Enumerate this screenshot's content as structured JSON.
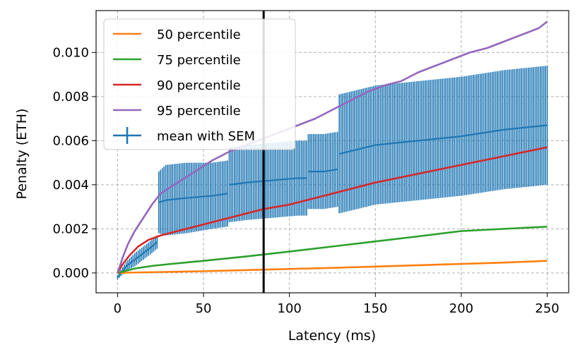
{
  "chart_data": {
    "type": "line",
    "title": "",
    "xlabel": "Latency (ms)",
    "ylabel": "Penalty (ETH)",
    "xlim": [
      -12.5,
      262.5
    ],
    "ylim": [
      -0.0009,
      0.0119
    ],
    "xticks": [
      0,
      50,
      100,
      150,
      200,
      250
    ],
    "xtick_labels": [
      "0",
      "50",
      "100",
      "150",
      "200",
      "250"
    ],
    "yticks": [
      0.0,
      0.002,
      0.004,
      0.006,
      0.008,
      0.01
    ],
    "ytick_labels": [
      "0.000",
      "0.002",
      "0.004",
      "0.006",
      "0.008",
      "0.010"
    ],
    "grid": true,
    "legend_position": "top-left",
    "vline": {
      "x": 85,
      "color": "#000000"
    },
    "series": [
      {
        "name": "50 percentile",
        "color": "#ff7f0e",
        "x": [
          0,
          10,
          25,
          50,
          75,
          100,
          125,
          150,
          175,
          200,
          225,
          250
        ],
        "values": [
          0.0,
          2e-05,
          4e-05,
          8e-05,
          0.00013,
          0.00018,
          0.00023,
          0.00029,
          0.00035,
          0.00041,
          0.00047,
          0.00055
        ]
      },
      {
        "name": "75 percentile",
        "color": "#2ca02c",
        "x": [
          0,
          5,
          10,
          20,
          30,
          50,
          75,
          100,
          125,
          150,
          175,
          200,
          225,
          250
        ],
        "values": [
          0.0,
          0.0001,
          0.0002,
          0.00032,
          0.0004,
          0.00055,
          0.00075,
          0.00097,
          0.0012,
          0.00143,
          0.00166,
          0.0019,
          0.002,
          0.0021
        ]
      },
      {
        "name": "90 percentile",
        "color": "#d62728",
        "x": [
          0,
          3,
          7,
          12,
          18,
          25,
          35,
          50,
          60,
          70,
          85,
          100,
          115,
          130,
          150,
          175,
          200,
          225,
          250
        ],
        "values": [
          0.0,
          0.0004,
          0.0008,
          0.0012,
          0.0015,
          0.0017,
          0.0019,
          0.0022,
          0.0024,
          0.0026,
          0.0029,
          0.0031,
          0.0034,
          0.0037,
          0.0041,
          0.0045,
          0.0049,
          0.0053,
          0.0057
        ]
      },
      {
        "name": "95 percentile",
        "color": "#9467bd",
        "x": [
          0,
          3,
          6,
          10,
          15,
          20,
          25,
          35,
          45,
          55,
          65,
          75,
          85,
          95,
          105,
          115,
          125,
          135,
          145,
          155,
          165,
          175,
          185,
          195,
          205,
          215,
          225,
          235,
          245,
          250
        ],
        "values": [
          0.0,
          0.0007,
          0.0013,
          0.0019,
          0.0025,
          0.0031,
          0.0036,
          0.0041,
          0.0046,
          0.0051,
          0.0055,
          0.0058,
          0.0061,
          0.0064,
          0.0067,
          0.007,
          0.0074,
          0.0078,
          0.0082,
          0.0085,
          0.0087,
          0.0091,
          0.0094,
          0.0097,
          0.01,
          0.0102,
          0.0105,
          0.0108,
          0.0111,
          0.0114
        ]
      }
    ],
    "errorbar": {
      "name": "mean with SEM",
      "color": "#1f77b4",
      "x_range": [
        0,
        250
      ],
      "segments": [
        {
          "x": [
            0,
            5,
            10,
            15,
            20,
            23
          ],
          "mean": [
            -0.0002,
            0.0003,
            0.0006,
            0.0009,
            0.0012,
            0.0014
          ],
          "sem": [
            0.0001,
            0.0002,
            0.0003,
            0.0003,
            0.0003,
            0.0003
          ]
        },
        {
          "x": [
            24,
            28,
            40,
            55,
            64
          ],
          "mean": [
            0.0032,
            0.0033,
            0.0034,
            0.0035,
            0.0036
          ],
          "sem": [
            0.0014,
            0.0016,
            0.0016,
            0.0015,
            0.0015
          ]
        },
        {
          "x": [
            65,
            75,
            90,
            105,
            110
          ],
          "mean": [
            0.004,
            0.0041,
            0.0042,
            0.0043,
            0.0043
          ],
          "sem": [
            0.0017,
            0.0017,
            0.0017,
            0.0017,
            0.0017
          ]
        },
        {
          "x": [
            111,
            120,
            128
          ],
          "mean": [
            0.0046,
            0.0046,
            0.0047
          ],
          "sem": [
            0.0017,
            0.0017,
            0.0017
          ]
        },
        {
          "x": [
            129,
            150,
            175,
            200,
            225,
            250
          ],
          "mean": [
            0.0054,
            0.0058,
            0.006,
            0.0062,
            0.0065,
            0.0067
          ],
          "sem": [
            0.0027,
            0.0027,
            0.0027,
            0.0027,
            0.0027,
            0.0027
          ]
        }
      ]
    }
  }
}
